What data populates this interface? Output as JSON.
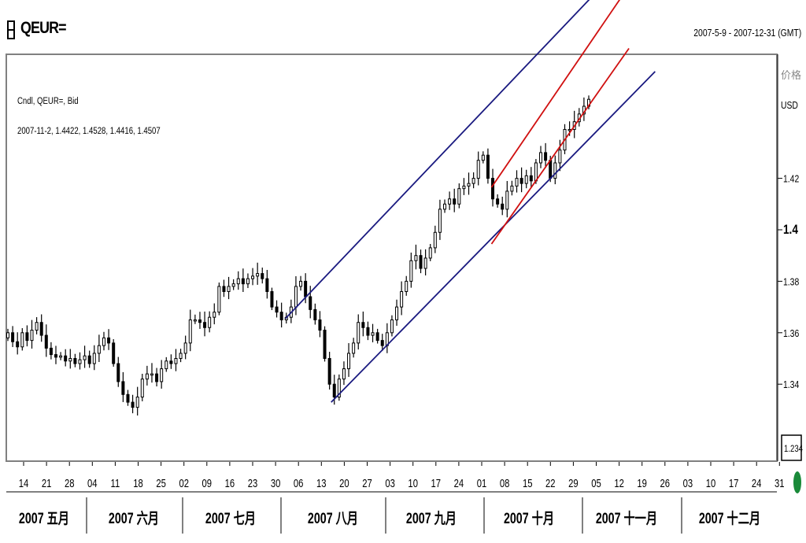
{
  "header": {
    "title": "QEUR=",
    "date_range": "2007-5-9 - 2007-12-31 (GMT)"
  },
  "legend": {
    "series_label": "Cndl, QEUR=, Bid",
    "last_values": "2007-11-2, 1.4422, 1.4528, 1.4416, 1.4507"
  },
  "y_axis": {
    "label_line1": "价格",
    "label_line2": "USD",
    "ticks": [
      "1.42",
      "1.4",
      "1.38",
      "1.36",
      "1.34"
    ],
    "tick_values": [
      1.42,
      1.4,
      1.38,
      1.36,
      1.34
    ],
    "scale_box": "1.234"
  },
  "x_axis": {
    "day_ticks": [
      "14",
      "21",
      "28",
      "04",
      "11",
      "18",
      "25",
      "02",
      "09",
      "16",
      "23",
      "30",
      "06",
      "13",
      "20",
      "27",
      "03",
      "10",
      "17",
      "24",
      "01",
      "08",
      "15",
      "22",
      "29",
      "05",
      "12",
      "19",
      "26",
      "03",
      "10",
      "17",
      "24",
      "31"
    ],
    "months": [
      "2007 五月",
      "2007 六月",
      "2007 七月",
      "2007 八月",
      "2007 九月",
      "2007 十月",
      "2007 十一月",
      "2007 十二月"
    ]
  },
  "colors": {
    "price_bars": "#000000",
    "outer_channel": "#1a1a80",
    "inner_channel": "#d01010",
    "axis": "#000000",
    "status_dot": "#1a8a3a"
  },
  "chart_data": {
    "type": "candlestick",
    "title": "",
    "series": [
      {
        "name": "QEUR=",
        "close": [
          1.36,
          1.3565,
          1.3545,
          1.36,
          1.357,
          1.361,
          1.364,
          1.359,
          1.354,
          1.3515,
          1.3505,
          1.351,
          1.349,
          1.35,
          1.348,
          1.3495,
          1.351,
          1.348,
          1.352,
          1.355,
          1.358,
          1.356,
          1.348,
          1.341,
          1.336,
          1.333,
          1.331,
          1.335,
          1.342,
          1.344,
          1.344,
          1.341,
          1.346,
          1.349,
          1.348,
          1.35,
          1.352,
          1.356,
          1.365,
          1.365,
          1.364,
          1.362,
          1.366,
          1.368,
          1.378,
          1.376,
          1.378,
          1.379,
          1.381,
          1.379,
          1.381,
          1.382,
          1.383,
          1.381,
          1.376,
          1.37,
          1.368,
          1.365,
          1.366,
          1.37,
          1.378,
          1.38,
          1.374,
          1.369,
          1.365,
          1.361,
          1.35,
          1.34,
          1.335,
          1.342,
          1.346,
          1.352,
          1.356,
          1.364,
          1.362,
          1.359,
          1.36,
          1.357,
          1.355,
          1.36,
          1.365,
          1.37,
          1.376,
          1.38,
          1.388,
          1.39,
          1.385,
          1.389,
          1.393,
          1.399,
          1.408,
          1.41,
          1.412,
          1.41,
          1.416,
          1.417,
          1.418,
          1.42,
          1.427,
          1.429,
          1.42,
          1.412,
          1.41,
          1.408,
          1.415,
          1.417,
          1.42,
          1.418,
          1.421,
          1.419,
          1.426,
          1.43,
          1.427,
          1.42,
          1.426,
          1.431,
          1.439,
          1.439,
          1.442,
          1.445,
          1.448,
          1.4507
        ]
      }
    ],
    "trendlines": [
      {
        "name": "",
        "color": "outer_channel",
        "from": [
          "2007-08-02",
          1.3655
        ],
        "to": [
          "2007-11-07",
          1.495
        ]
      },
      {
        "name": "",
        "color": "outer_channel",
        "from": [
          "2007-08-16",
          1.333
        ],
        "to": [
          "2007-11-23",
          1.4615
        ]
      },
      {
        "name": "",
        "color": "inner_channel",
        "from": [
          "2007-10-04",
          1.4165
        ],
        "to": [
          "2007-11-13",
          1.491
        ]
      },
      {
        "name": "",
        "color": "inner_channel",
        "from": [
          "2007-10-04",
          1.3945
        ],
        "to": [
          "2007-11-15",
          1.4705
        ]
      }
    ],
    "xrange": [
      "2007-05-09",
      "2007-12-31"
    ],
    "ylim": [
      1.32,
      1.46
    ],
    "grid": false,
    "legend": "top-left"
  }
}
